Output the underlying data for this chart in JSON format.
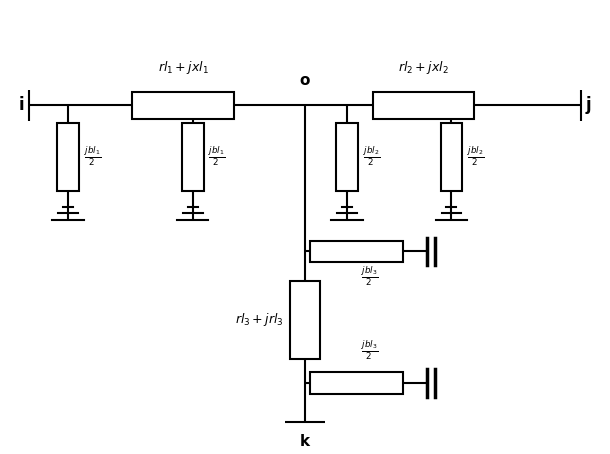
{
  "figsize": [
    6.1,
    4.54
  ],
  "dpi": 100,
  "line_color": "black",
  "lw": 1.5,
  "bg": "white",
  "labels": {
    "node_i": "i",
    "node_j": "j",
    "node_o": "o",
    "node_k": "k",
    "z1": "$rl_1 + jxl_1$",
    "z2": "$rl_2 + jxl_2$",
    "z3": "$rl_3 + jrl_3$",
    "b1a": "$\\frac{jbl_1}{2}$",
    "b1b": "$\\frac{jbl_1}{2}$",
    "b2a": "$\\frac{jbl_2}{2}$",
    "b2b": "$\\frac{jbl_2}{2}$",
    "b3a": "$\\frac{jbl_3}{2}$",
    "b3b": "$\\frac{jbl_3}{2}$"
  }
}
